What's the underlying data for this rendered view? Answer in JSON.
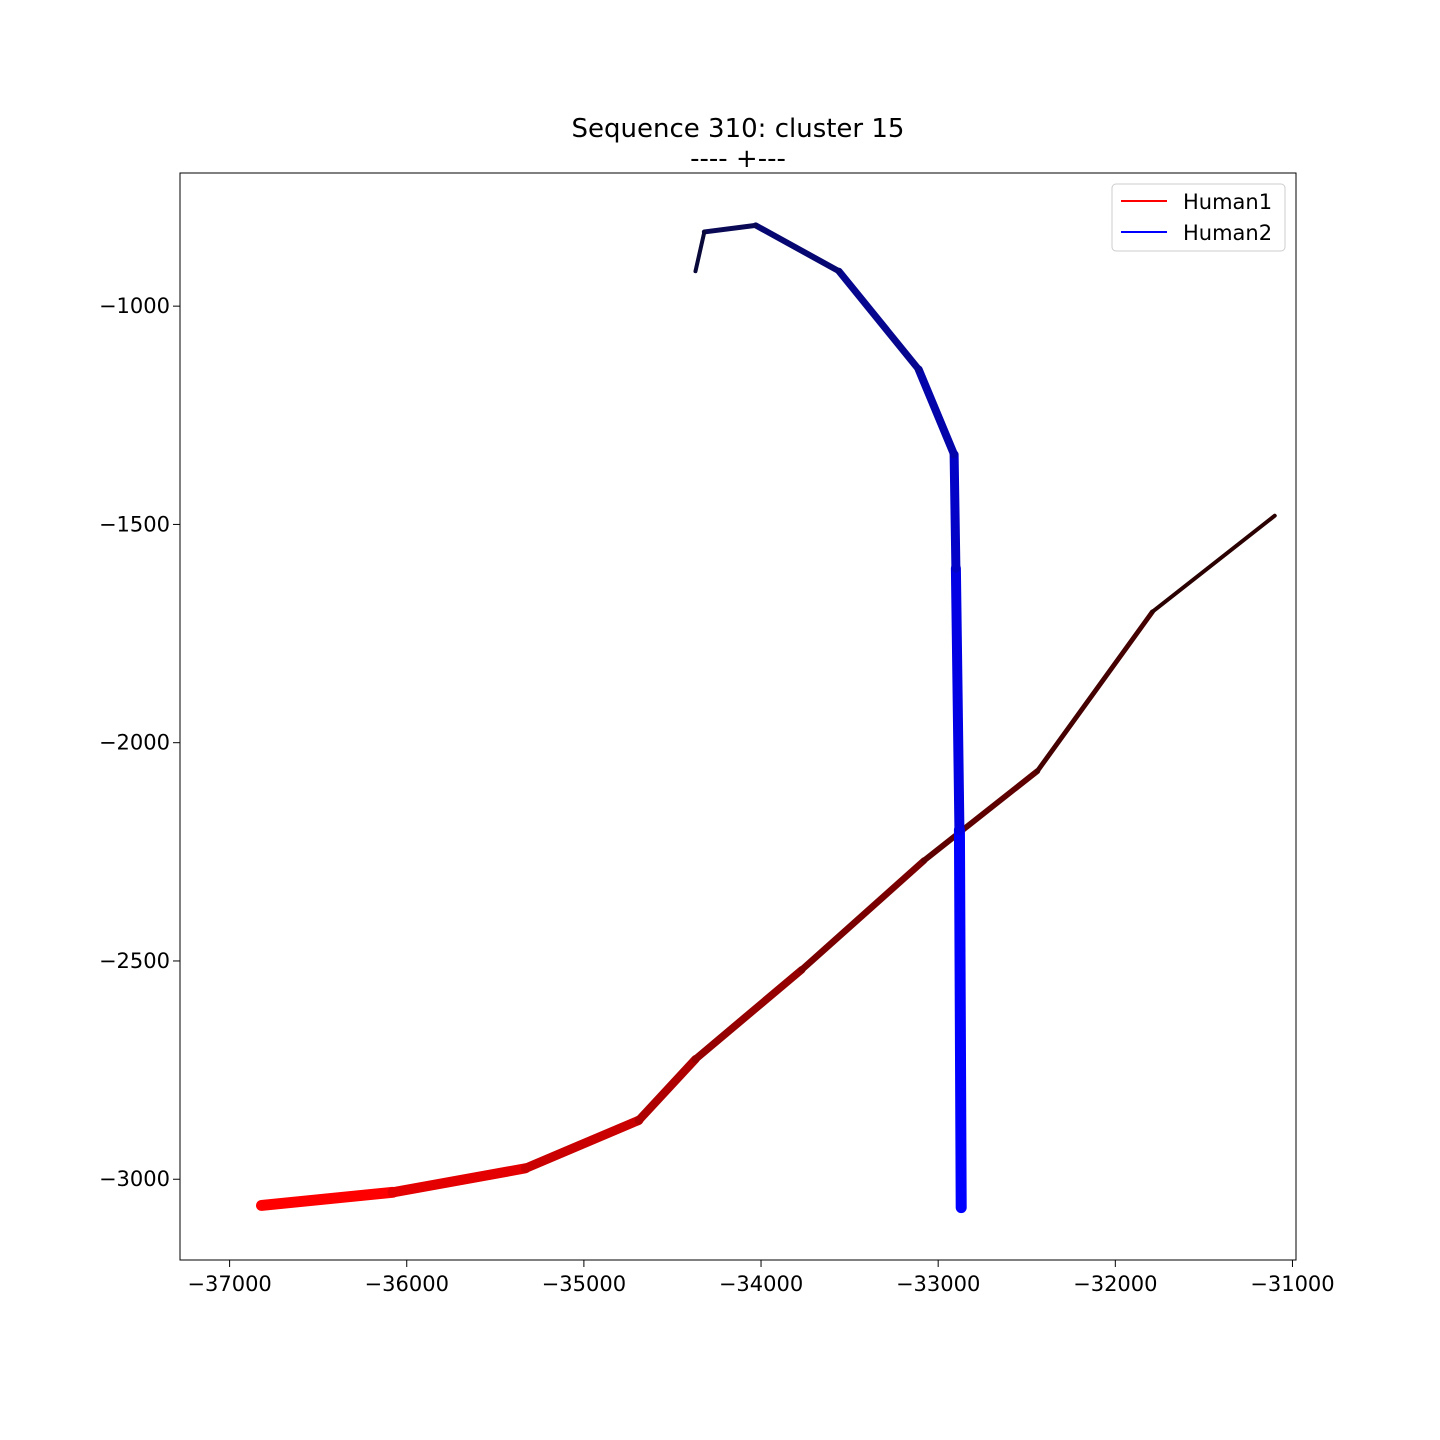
{
  "chart_data": {
    "type": "line",
    "title": "Sequence 310: cluster 15",
    "subtitle": "---- +---",
    "xlabel": "",
    "ylabel": "",
    "xlim": [
      -37280,
      -30980
    ],
    "ylim": [
      -3185,
      -695
    ],
    "xticks": [
      -37000,
      -36000,
      -35000,
      -34000,
      -33000,
      -32000,
      -31000
    ],
    "yticks": [
      -1000,
      -1500,
      -2000,
      -2500,
      -3000
    ],
    "grid": false,
    "legend": {
      "position": "top-right"
    },
    "series": [
      {
        "name": "Human1",
        "color": "#ff0000",
        "start_color": "#ff0000",
        "end_color": "#2a0000",
        "x": [
          -36820,
          -36080,
          -35330,
          -34690,
          -34370,
          -33770,
          -33080,
          -32440,
          -31790,
          -31100
        ],
        "y": [
          -3060,
          -3030,
          -2975,
          -2865,
          -2725,
          -2520,
          -2270,
          -2065,
          -1700,
          -1480
        ]
      },
      {
        "name": "Human2",
        "color": "#0000ff",
        "start_color": "#0000ff",
        "end_color": "#0a0a3a",
        "x": [
          -32870,
          -32880,
          -32900,
          -32910,
          -33110,
          -33560,
          -34030,
          -34320,
          -34370
        ],
        "y": [
          -3065,
          -2200,
          -1600,
          -1340,
          -1145,
          -920,
          -815,
          -830,
          -920
        ]
      }
    ]
  }
}
